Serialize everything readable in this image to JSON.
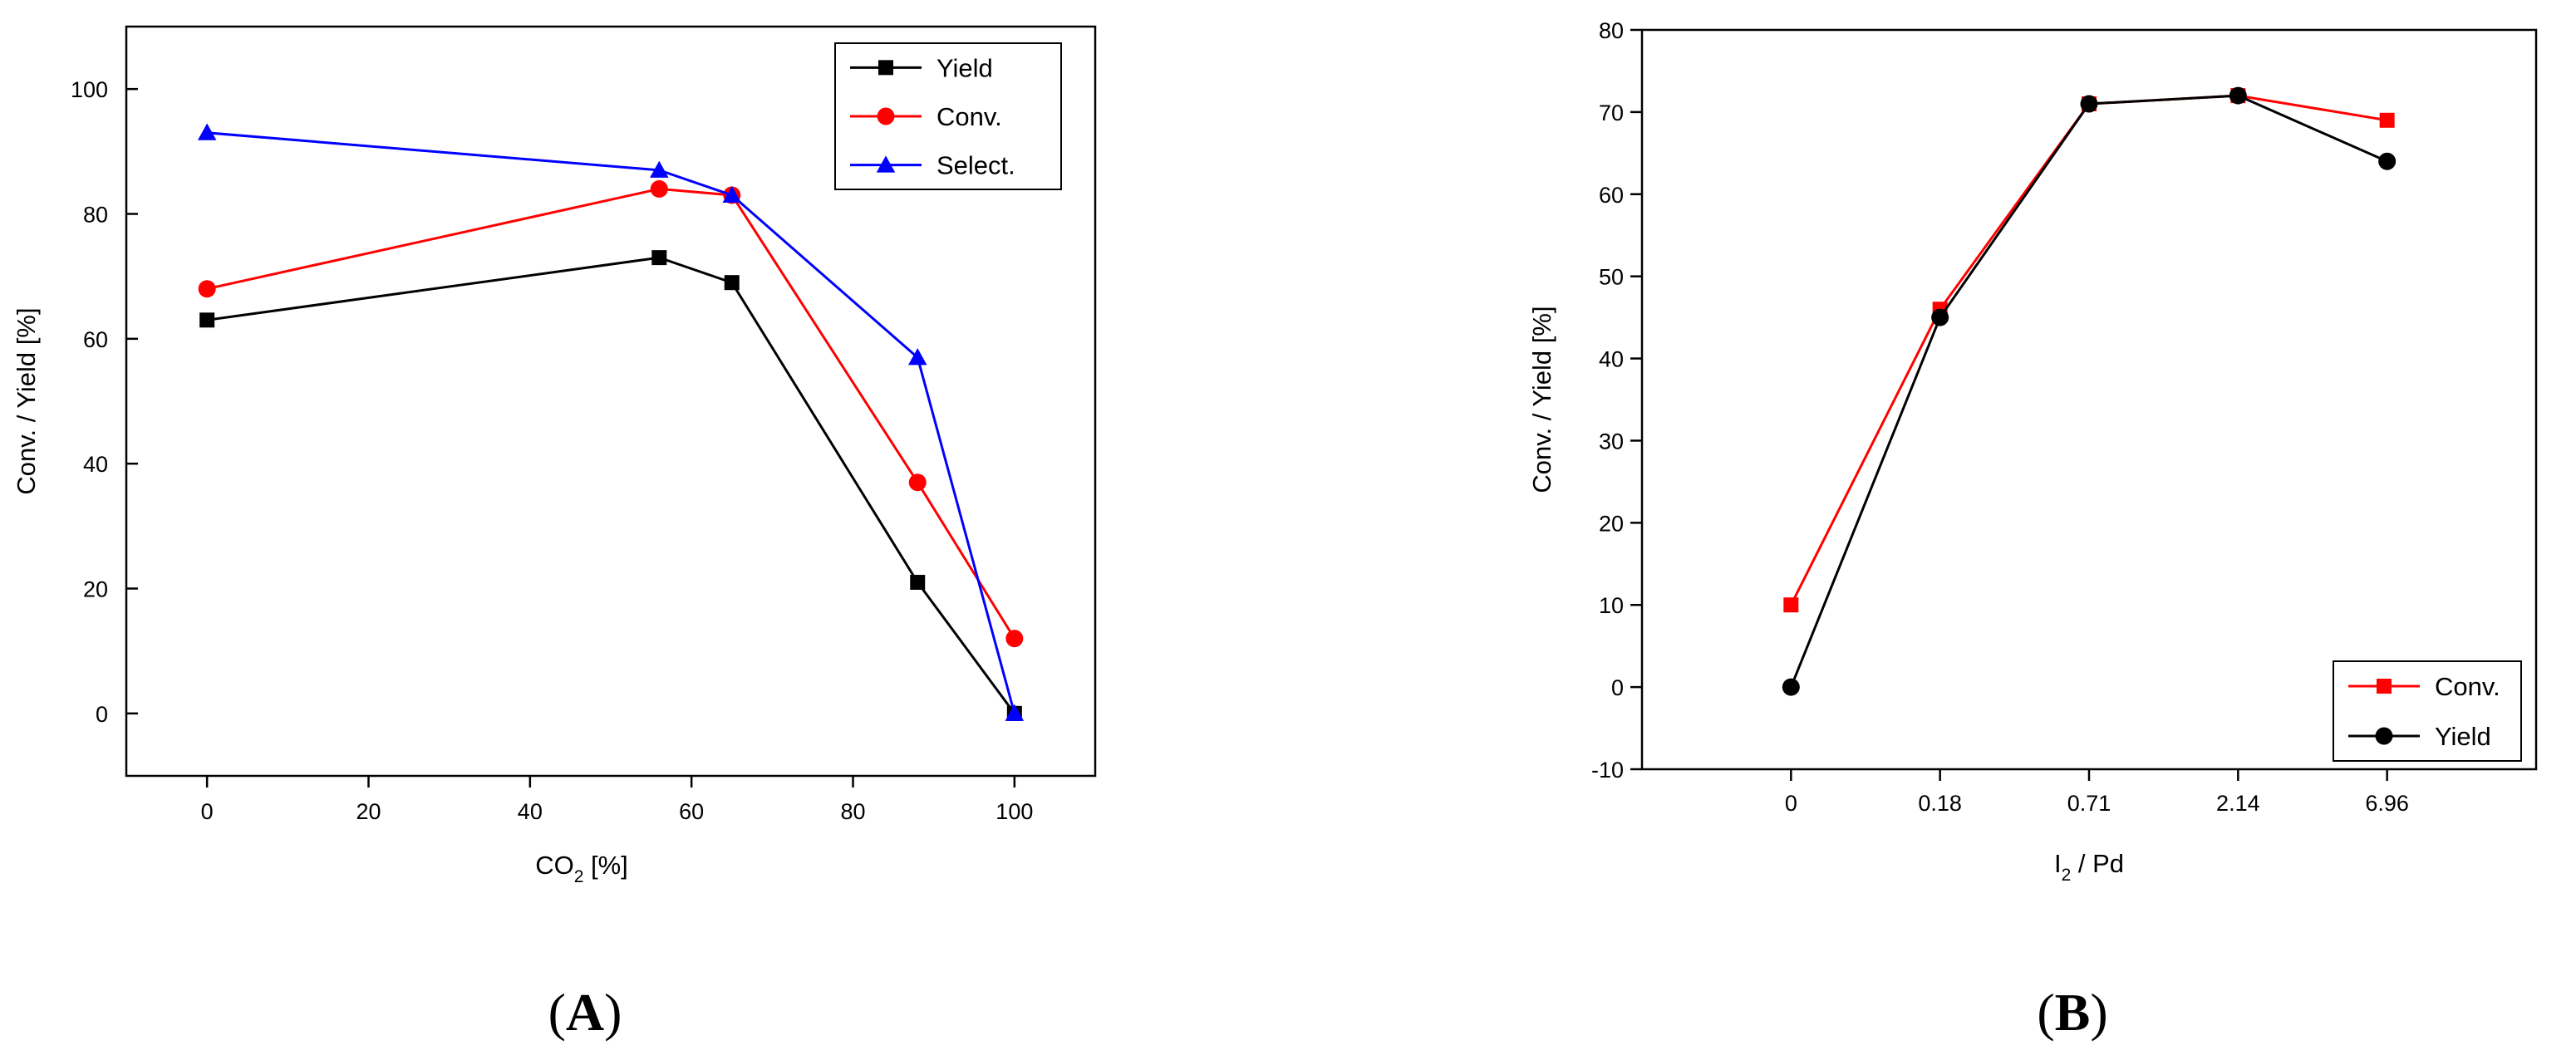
{
  "chart_data": [
    {
      "type": "line",
      "panel_label": "(A)",
      "panel_letter": "A",
      "xlabel": "CO2 [%]",
      "xlabel_main": "CO",
      "xlabel_sub": "2",
      "xlabel_rest": " [%]",
      "ylabel": "Conv. / Yield [%]",
      "xlim": [
        -10,
        110
      ],
      "ylim": [
        -10,
        110
      ],
      "xticks": [
        0,
        20,
        40,
        60,
        80,
        100
      ],
      "yticks": [
        0,
        20,
        40,
        60,
        80,
        100
      ],
      "legend_position": "top-right",
      "series": [
        {
          "name": "Yield",
          "color": "#000000",
          "marker": "square",
          "x": [
            0,
            56,
            65,
            88,
            100
          ],
          "y": [
            63,
            73,
            69,
            21,
            0
          ]
        },
        {
          "name": "Conv.",
          "color": "#ff0000",
          "marker": "circle",
          "x": [
            0,
            56,
            65,
            88,
            100
          ],
          "y": [
            68,
            84,
            83,
            37,
            12
          ]
        },
        {
          "name": "Select.",
          "color": "#0000ff",
          "marker": "triangle",
          "x": [
            0,
            56,
            65,
            88,
            100
          ],
          "y": [
            93,
            87,
            83,
            57,
            0
          ]
        }
      ]
    },
    {
      "type": "line",
      "panel_label": "(B)",
      "panel_letter": "B",
      "xlabel": "I2 / Pd",
      "xlabel_main": "I",
      "xlabel_sub": "2",
      "xlabel_rest": " / Pd",
      "ylabel": "Conv. / Yield [%]",
      "categories": [
        "0",
        "0.18",
        "0.71",
        "2.14",
        "6.96"
      ],
      "xlim": [
        -1,
        5
      ],
      "ylim": [
        -10,
        80
      ],
      "yticks": [
        -10,
        0,
        10,
        20,
        30,
        40,
        50,
        60,
        70,
        80
      ],
      "legend_position": "bottom-right",
      "series": [
        {
          "name": "Conv.",
          "color": "#ff0000",
          "marker": "square",
          "values": [
            10,
            46,
            71,
            72,
            69
          ]
        },
        {
          "name": "Yield",
          "color": "#000000",
          "marker": "circle",
          "values": [
            0,
            45,
            71,
            72,
            64
          ]
        }
      ]
    }
  ]
}
